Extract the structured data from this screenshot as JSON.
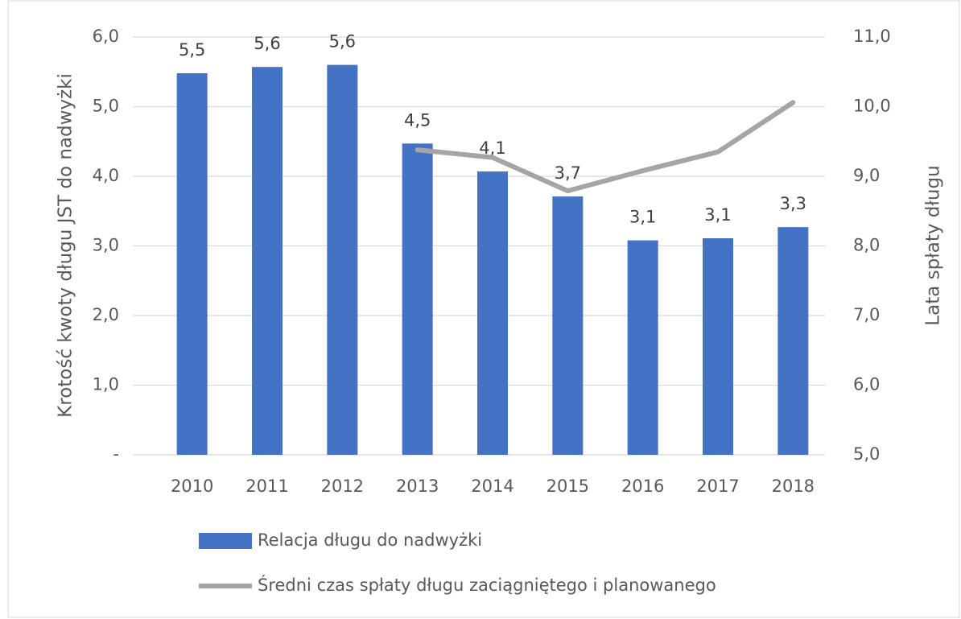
{
  "chart_data": {
    "type": "bar",
    "categories": [
      "2010",
      "2011",
      "2012",
      "2013",
      "2014",
      "2015",
      "2016",
      "2017",
      "2018"
    ],
    "series": [
      {
        "name": "Relacja długu do nadwyżki",
        "color": "#4472c4",
        "type": "bar",
        "values": [
          5.48,
          5.57,
          5.6,
          4.47,
          4.07,
          3.71,
          3.08,
          3.11,
          3.27
        ],
        "value_labels": [
          "5,5",
          "5,6",
          "5,6",
          "4,5",
          "4,1",
          "3,7",
          "3,1",
          "3,1",
          "3,3"
        ]
      },
      {
        "name": "Średni czas spłaty długu zaciągniętego i planowanego",
        "color": "#a5a5a5",
        "type": "line",
        "axis": "y2",
        "values": [
          null,
          null,
          null,
          9.38,
          9.27,
          8.79,
          9.08,
          9.35,
          10.06
        ]
      }
    ],
    "ylabel": "Krotość kwoty długu JST do nadwyżki",
    "y2label": "Lata spłaty długu",
    "ylim": [
      0,
      6
    ],
    "yticks": [
      {
        "value": 0,
        "label": "-"
      },
      {
        "value": 1,
        "label": "1,0"
      },
      {
        "value": 2,
        "label": "2,0"
      },
      {
        "value": 3,
        "label": "3,0"
      },
      {
        "value": 4,
        "label": "4,0"
      },
      {
        "value": 5,
        "label": "5,0"
      },
      {
        "value": 6,
        "label": "6,0"
      }
    ],
    "y2lim": [
      5,
      11
    ],
    "y2ticks": [
      {
        "value": 5,
        "label": "5,0"
      },
      {
        "value": 6,
        "label": "6,0"
      },
      {
        "value": 7,
        "label": "7,0"
      },
      {
        "value": 8,
        "label": "8,0"
      },
      {
        "value": 9,
        "label": "9,0"
      },
      {
        "value": 10,
        "label": "10,0"
      },
      {
        "value": 11,
        "label": "11,0"
      }
    ],
    "grid": true,
    "legend": "bottom"
  }
}
